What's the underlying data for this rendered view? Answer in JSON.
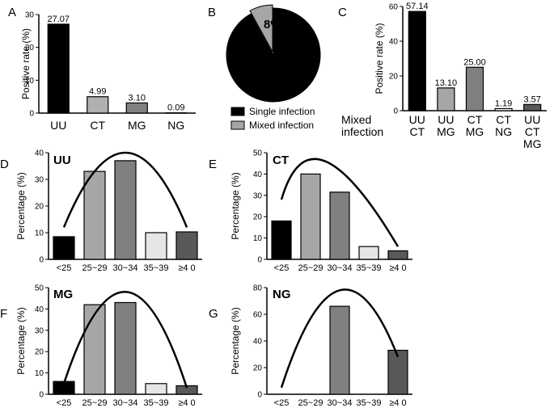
{
  "chart_data": [
    {
      "panel": "A",
      "type": "bar",
      "ylabel": "Positive rate (%)",
      "ylim": [
        0,
        30
      ],
      "yticks": [
        "0",
        "10",
        "20",
        "30"
      ],
      "categories": [
        "UU",
        "CT",
        "MG",
        "NG"
      ],
      "values": [
        27.07,
        4.99,
        3.1,
        0.09
      ],
      "value_labels": [
        "27.07",
        "4.99",
        "3.10",
        "0.09"
      ],
      "colors": [
        "#000000",
        "#b0b0b0",
        "#808080",
        "#ffffff"
      ]
    },
    {
      "panel": "B",
      "type": "pie",
      "slices": [
        {
          "label": "Single infection",
          "value": 92,
          "color": "#000000"
        },
        {
          "label": "Mixed infection",
          "value": 8,
          "color": "#a6a6a6"
        }
      ],
      "slice_label": "8%"
    },
    {
      "panel": "C",
      "type": "bar",
      "ylabel": "Positive rate (%)",
      "ylim": [
        0,
        60
      ],
      "yticks": [
        "0",
        "20",
        "40",
        "60"
      ],
      "xlabel_lines": [
        "Mixed",
        "infection"
      ],
      "categories": [
        [
          "UU",
          "CT"
        ],
        [
          "UU",
          "MG"
        ],
        [
          "CT",
          "MG"
        ],
        [
          "CT",
          "NG"
        ],
        [
          "UU",
          "CT",
          "MG"
        ]
      ],
      "values": [
        57.14,
        13.1,
        25.0,
        1.19,
        3.57
      ],
      "value_labels": [
        "57.14",
        "13.10",
        "25.00",
        "1.19",
        "3.57"
      ],
      "colors": [
        "#000000",
        "#a6a6a6",
        "#808080",
        "#ffffff",
        "#595959"
      ]
    },
    {
      "panel": "D",
      "title": "UU",
      "type": "bar",
      "ylabel": "Percentage (%)",
      "ylim": [
        0,
        40
      ],
      "yticks": [
        "0",
        "10",
        "20",
        "30",
        "40"
      ],
      "categories": [
        "<25",
        "25~29",
        "30~34",
        "35~39",
        "≥4 0"
      ],
      "values": [
        8.5,
        33,
        37,
        10,
        10.3
      ],
      "colors": [
        "#000000",
        "#a6a6a6",
        "#808080",
        "#e6e6e6",
        "#595959"
      ],
      "trend": [
        [
          0,
          12
        ],
        [
          2,
          40
        ],
        [
          4,
          12
        ]
      ]
    },
    {
      "panel": "E",
      "title": "CT",
      "type": "bar",
      "ylabel": "Percentage (%)",
      "ylim": [
        0,
        50
      ],
      "yticks": [
        "0",
        "10",
        "20",
        "30",
        "40",
        "50"
      ],
      "categories": [
        "<25",
        "25~29",
        "30~34",
        "35~39",
        "≥4 0"
      ],
      "values": [
        18,
        40,
        31.5,
        6,
        4
      ],
      "colors": [
        "#000000",
        "#a6a6a6",
        "#808080",
        "#e6e6e6",
        "#595959"
      ],
      "trend": [
        [
          0,
          28
        ],
        [
          1.5,
          46
        ],
        [
          4,
          6
        ]
      ]
    },
    {
      "panel": "F",
      "title": "MG",
      "type": "bar",
      "ylabel": "Percentage (%)",
      "ylim": [
        0,
        50
      ],
      "yticks": [
        "0",
        "10",
        "20",
        "30",
        "40",
        "50"
      ],
      "categories": [
        "<25",
        "25~29",
        "30~34",
        "35~39",
        "≥4 0"
      ],
      "values": [
        6,
        42,
        43,
        5,
        4
      ],
      "colors": [
        "#000000",
        "#a6a6a6",
        "#808080",
        "#e6e6e6",
        "#595959"
      ],
      "trend": [
        [
          0,
          5
        ],
        [
          2,
          48
        ],
        [
          4,
          3
        ]
      ]
    },
    {
      "panel": "G",
      "title": "NG",
      "type": "bar",
      "ylabel": "Percentage (%)",
      "ylim": [
        0,
        80
      ],
      "yticks": [
        "0",
        "20",
        "40",
        "60",
        "80"
      ],
      "categories": [
        "<25",
        "25~29",
        "30~34",
        "35~39",
        "≥4 0"
      ],
      "values": [
        0,
        0,
        66,
        0,
        33
      ],
      "colors": [
        "#000000",
        "#a6a6a6",
        "#808080",
        "#e6e6e6",
        "#595959"
      ],
      "trend": [
        [
          0,
          5
        ],
        [
          2,
          78
        ],
        [
          4,
          28
        ]
      ]
    }
  ]
}
